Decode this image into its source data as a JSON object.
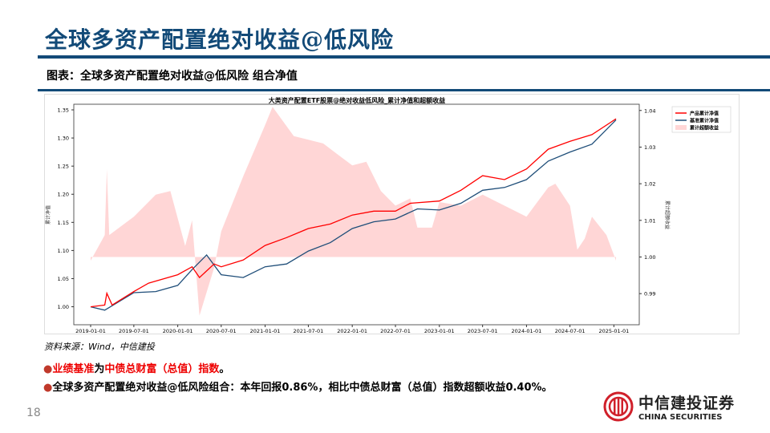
{
  "header": {
    "title": "全球多资产配置绝对收益@低风险",
    "subtitle": "图表：全球多资产配置绝对收益@低风险 组合净值"
  },
  "footer": {
    "source": "资料来源：Wind，中信建投",
    "bullet1_red1": "业绩基准",
    "bullet1_mid": "为",
    "bullet1_red2": "中债总财富（总值）指数",
    "bullet1_end": "。",
    "bullet2": "全球多资产配置绝对收益@低风险组合：本年回报0.86%，相比中债总财富（总值）指数超额收益0.40%。",
    "bullet_mark": "●",
    "page_number": "18",
    "logo_cn": "中信建投证券",
    "logo_en": "CHINA SECURITIES"
  },
  "colors": {
    "brand": "#124a78",
    "product": "#ff0000",
    "benchmark": "#1f4e79",
    "excess": "#ffd6d6"
  },
  "chart_data": {
    "type": "line",
    "title": "大类资产配置ETF股票@绝对收益低风险_累计净值和超额收益",
    "ylabel": "累计净值",
    "y2label": "累计超额收益",
    "ylim": [
      0.968,
      1.36
    ],
    "y2lim": [
      0.9815,
      1.0417
    ],
    "yticks": [
      "1.00",
      "1.05",
      "1.10",
      "1.15",
      "1.20",
      "1.25",
      "1.30",
      "1.35"
    ],
    "y2ticks": [
      "0.99",
      "1.00",
      "1.01",
      "1.02",
      "1.03",
      "1.04"
    ],
    "xticks": [
      "2019-01-01",
      "2019-07-01",
      "2020-01-01",
      "2020-07-01",
      "2021-01-01",
      "2021-07-01",
      "2022-01-01",
      "2022-07-01",
      "2023-01-01",
      "2023-07-01",
      "2024-01-01",
      "2024-07-01",
      "2025-01-01"
    ],
    "legend": [
      "产品累计净值",
      "基准累计净值",
      "累计超额收益"
    ],
    "legend_position": "top-right",
    "series": [
      {
        "name": "产品累计净值",
        "axis": "left",
        "points": [
          [
            "2019-01-01",
            1.0
          ],
          [
            "2019-03-01",
            1.003
          ],
          [
            "2019-03-10",
            1.024
          ],
          [
            "2019-04-01",
            1.003
          ],
          [
            "2019-07-01",
            1.027
          ],
          [
            "2019-09-01",
            1.042
          ],
          [
            "2020-01-01",
            1.057
          ],
          [
            "2020-03-01",
            1.071
          ],
          [
            "2020-04-01",
            1.052
          ],
          [
            "2020-06-01",
            1.076
          ],
          [
            "2020-07-01",
            1.071
          ],
          [
            "2020-10-01",
            1.083
          ],
          [
            "2021-01-01",
            1.109
          ],
          [
            "2021-04-01",
            1.123
          ],
          [
            "2021-07-01",
            1.139
          ],
          [
            "2021-10-01",
            1.147
          ],
          [
            "2022-01-01",
            1.163
          ],
          [
            "2022-04-01",
            1.17
          ],
          [
            "2022-07-01",
            1.17
          ],
          [
            "2022-09-01",
            1.184
          ],
          [
            "2023-01-01",
            1.188
          ],
          [
            "2023-04-01",
            1.207
          ],
          [
            "2023-07-01",
            1.233
          ],
          [
            "2023-10-01",
            1.226
          ],
          [
            "2024-01-01",
            1.245
          ],
          [
            "2024-04-01",
            1.28
          ],
          [
            "2024-07-01",
            1.294
          ],
          [
            "2024-10-01",
            1.306
          ],
          [
            "2025-01-10",
            1.334
          ]
        ]
      },
      {
        "name": "基准累计净值",
        "axis": "left",
        "points": [
          [
            "2019-01-01",
            1.0
          ],
          [
            "2019-03-01",
            0.994
          ],
          [
            "2019-07-01",
            1.025
          ],
          [
            "2019-10-01",
            1.027
          ],
          [
            "2020-01-01",
            1.038
          ],
          [
            "2020-03-01",
            1.066
          ],
          [
            "2020-05-01",
            1.092
          ],
          [
            "2020-07-01",
            1.057
          ],
          [
            "2020-10-01",
            1.052
          ],
          [
            "2021-01-01",
            1.071
          ],
          [
            "2021-04-01",
            1.076
          ],
          [
            "2021-07-01",
            1.099
          ],
          [
            "2021-10-01",
            1.114
          ],
          [
            "2022-01-01",
            1.139
          ],
          [
            "2022-04-01",
            1.151
          ],
          [
            "2022-07-01",
            1.156
          ],
          [
            "2022-10-01",
            1.174
          ],
          [
            "2023-01-01",
            1.172
          ],
          [
            "2023-04-01",
            1.184
          ],
          [
            "2023-07-01",
            1.207
          ],
          [
            "2023-10-01",
            1.212
          ],
          [
            "2024-01-01",
            1.226
          ],
          [
            "2024-04-01",
            1.259
          ],
          [
            "2024-07-01",
            1.275
          ],
          [
            "2024-10-01",
            1.289
          ],
          [
            "2025-01-10",
            1.332
          ]
        ]
      },
      {
        "name": "累计超额收益",
        "axis": "right",
        "kind": "area",
        "baseline": 1.0,
        "points": [
          [
            "2019-01-01",
            0.999
          ],
          [
            "2019-03-01",
            1.006
          ],
          [
            "2019-03-10",
            1.024
          ],
          [
            "2019-03-20",
            1.006
          ],
          [
            "2019-07-01",
            1.011
          ],
          [
            "2019-10-01",
            1.017
          ],
          [
            "2019-12-01",
            1.018
          ],
          [
            "2020-02-01",
            1.003
          ],
          [
            "2020-03-01",
            1.01
          ],
          [
            "2020-04-01",
            0.984
          ],
          [
            "2020-06-01",
            0.997
          ],
          [
            "2020-07-01",
            1.007
          ],
          [
            "2020-10-01",
            1.022
          ],
          [
            "2021-01-01",
            1.036
          ],
          [
            "2021-02-01",
            1.041
          ],
          [
            "2021-05-01",
            1.033
          ],
          [
            "2021-09-01",
            1.031
          ],
          [
            "2021-11-01",
            1.028
          ],
          [
            "2022-01-01",
            1.025
          ],
          [
            "2022-03-01",
            1.026
          ],
          [
            "2022-05-01",
            1.018
          ],
          [
            "2022-07-01",
            1.014
          ],
          [
            "2022-09-01",
            1.016
          ],
          [
            "2022-10-01",
            1.008
          ],
          [
            "2022-12-01",
            1.008
          ],
          [
            "2023-01-01",
            1.015
          ],
          [
            "2023-04-01",
            1.014
          ],
          [
            "2023-07-01",
            1.017
          ],
          [
            "2023-10-01",
            1.014
          ],
          [
            "2024-01-01",
            1.011
          ],
          [
            "2024-04-01",
            1.019
          ],
          [
            "2024-05-01",
            1.02
          ],
          [
            "2024-07-01",
            1.014
          ],
          [
            "2024-08-01",
            1.002
          ],
          [
            "2024-09-01",
            1.005
          ],
          [
            "2024-10-01",
            1.011
          ],
          [
            "2024-12-01",
            1.006
          ],
          [
            "2025-01-10",
            0.999
          ]
        ]
      }
    ]
  }
}
